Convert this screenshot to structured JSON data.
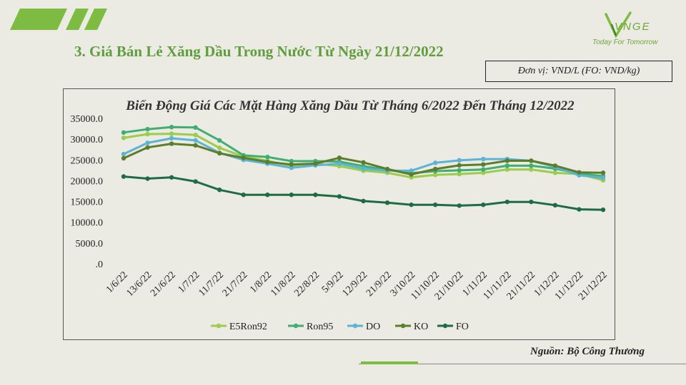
{
  "header": {
    "title": "3. Giá Bán Lẻ Xăng Dầu Trong Nước Từ Ngày 21/12/2022",
    "unit_note": "Đơn vị: VND/L (FO: VND/kg)",
    "logo_text": "VNGE",
    "tagline": "Today For Tomorrow",
    "accent_color": "#7dbb42"
  },
  "footer": {
    "source": "Nguồn: Bộ Công Thương"
  },
  "chart_data": {
    "type": "line",
    "title": "Biến Động Giá Các Mặt Hàng Xăng Dầu Từ Tháng 6/2022 Đến Tháng 12/2022",
    "xlabel": "",
    "ylabel": "",
    "categories": [
      "1/6/22",
      "13/6/22",
      "21/6/22",
      "1/7/22",
      "11/7/22",
      "21/7/22",
      "1/8/22",
      "11/8/22",
      "22/8/22",
      "5/9/22",
      "12/9/22",
      "21/9/22",
      "3/10/22",
      "11/10/22",
      "21/10/22",
      "1/11/22",
      "11/11/22",
      "21/11/22",
      "1/12/22",
      "11/12/22",
      "21/12/22"
    ],
    "ylim": [
      0,
      35000
    ],
    "yticks": [
      0,
      5000,
      10000,
      15000,
      20000,
      25000,
      30000,
      35000
    ],
    "ytick_labels": [
      ".0",
      "5000.0",
      "10000.0",
      "15000.0",
      "20000.0",
      "25000.0",
      "30000.0",
      "35000.0"
    ],
    "grid": false,
    "legend_position": "bottom",
    "series": [
      {
        "name": "E5Ron92",
        "color": "#9ccc4a",
        "values": [
          30300,
          31200,
          31300,
          31000,
          27900,
          25800,
          24800,
          23600,
          24100,
          23500,
          22400,
          21900,
          20800,
          21400,
          21600,
          21900,
          22700,
          22700,
          21900,
          21600,
          20100
        ]
      },
      {
        "name": "Ron95",
        "color": "#3fae72",
        "values": [
          31600,
          32400,
          32900,
          32800,
          29700,
          26100,
          25700,
          24700,
          24700,
          24600,
          23500,
          22600,
          21800,
          22300,
          22500,
          22700,
          23600,
          23600,
          22900,
          21700,
          21100
        ]
      },
      {
        "name": "DO",
        "color": "#5bb3d6",
        "values": [
          26400,
          29100,
          30200,
          29700,
          26700,
          25000,
          24100,
          23100,
          23700,
          24100,
          22900,
          22400,
          22400,
          24300,
          24900,
          25200,
          25200,
          24800,
          23300,
          21300,
          20700
        ]
      },
      {
        "name": "KO",
        "color": "#5e7d2a",
        "values": [
          25400,
          28000,
          28900,
          28500,
          26600,
          25500,
          24500,
          23900,
          24100,
          25500,
          24400,
          22800,
          21500,
          22800,
          23700,
          23900,
          24800,
          24800,
          23600,
          22000,
          21900
        ]
      },
      {
        "name": "FO",
        "color": "#1f6b45",
        "values": [
          21000,
          20500,
          20800,
          19800,
          17800,
          16600,
          16600,
          16600,
          16600,
          16200,
          15100,
          14700,
          14200,
          14200,
          14000,
          14200,
          14900,
          14900,
          14100,
          13100,
          13000
        ]
      }
    ]
  }
}
